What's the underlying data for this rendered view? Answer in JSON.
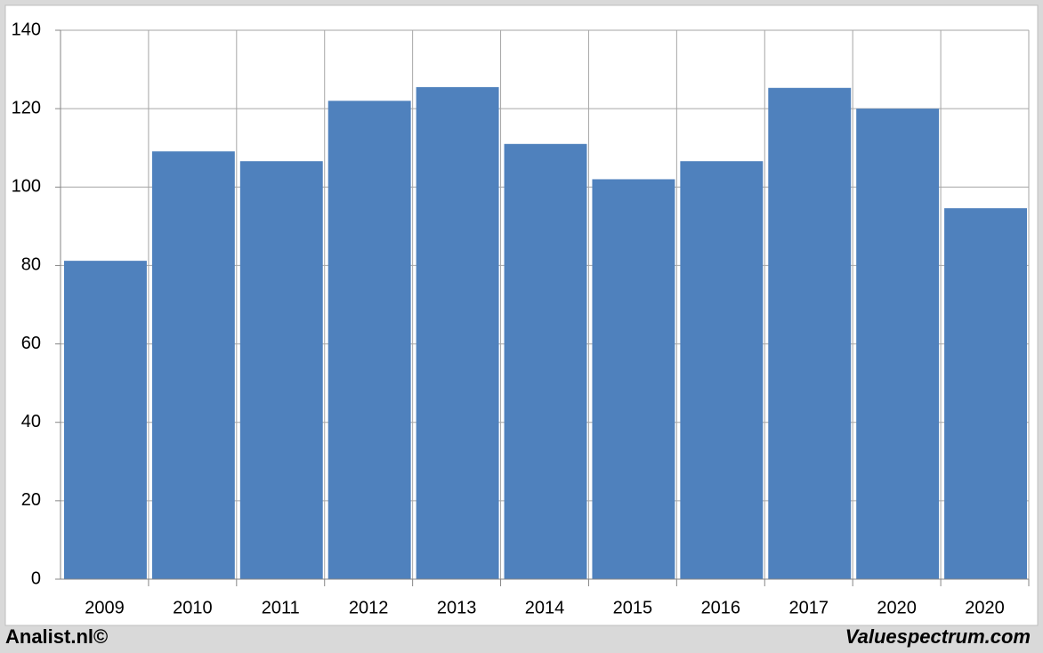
{
  "chart_data": {
    "type": "bar",
    "categories": [
      "2009",
      "2010",
      "2011",
      "2012",
      "2013",
      "2014",
      "2015",
      "2016",
      "2017",
      "2020",
      "2020"
    ],
    "values": [
      81.2,
      109.1,
      106.6,
      122,
      125.5,
      111,
      102,
      106.6,
      125.3,
      120,
      94.6
    ],
    "color": "#4f81bd",
    "ylim": [
      0,
      140
    ],
    "yticks": [
      0,
      20,
      40,
      60,
      80,
      100,
      120,
      140
    ],
    "grid": true,
    "footer_left": "Analist.nl©",
    "footer_right": "Valuespectrum.com"
  }
}
